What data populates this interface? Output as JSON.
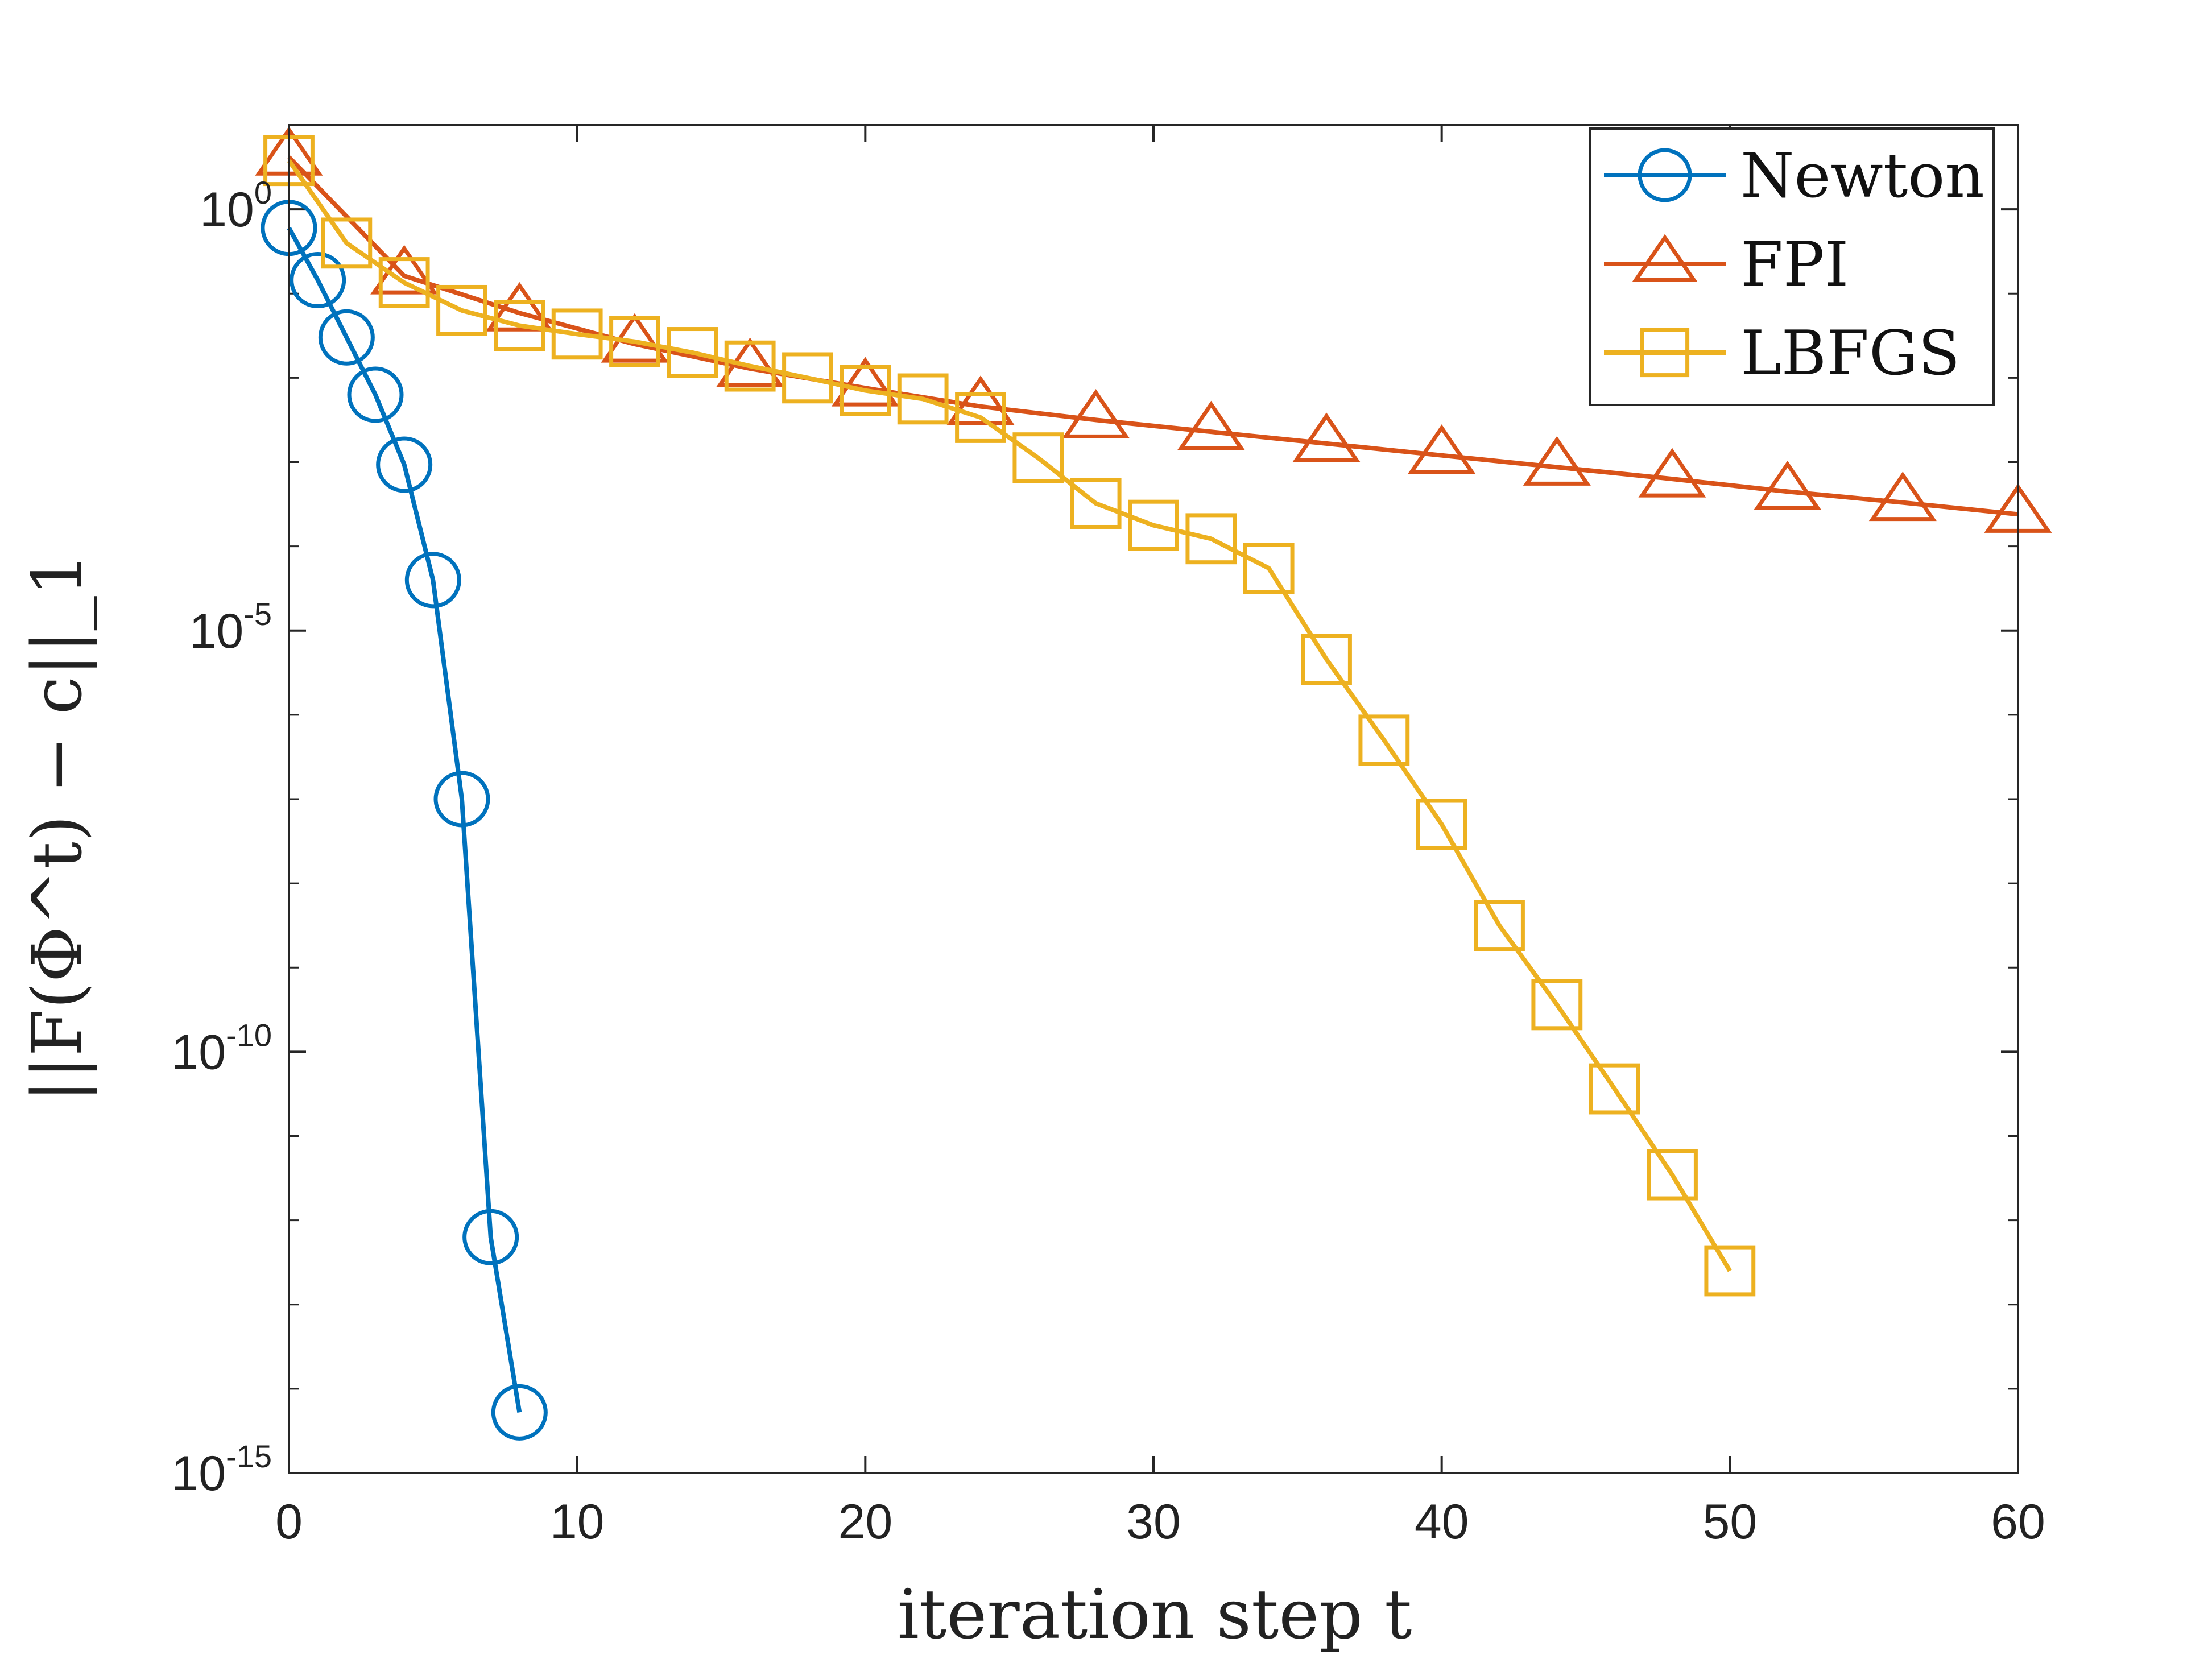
{
  "chart_data": {
    "type": "line",
    "title": "",
    "xlabel": "iteration step t",
    "ylabel": "||F(Φ^t) − c||_1",
    "xlim": [
      0,
      60
    ],
    "ylim_log10": [
      -15,
      1
    ],
    "yscale": "log",
    "x_ticks": [
      "0",
      "10",
      "20",
      "30",
      "40",
      "50",
      "60"
    ],
    "y_ticks": [
      {
        "base": "10",
        "exp": "0"
      },
      {
        "base": "10",
        "exp": "-5"
      },
      {
        "base": "10",
        "exp": "-10"
      },
      {
        "base": "10",
        "exp": "-15"
      }
    ],
    "legend_position": "top-right",
    "series": [
      {
        "name": "Newton",
        "color": "#0072BD",
        "marker": "circle",
        "x": [
          0,
          1,
          2,
          3,
          4,
          5,
          6,
          7,
          8
        ],
        "log10_y": [
          -0.22,
          -0.84,
          -1.52,
          -2.2,
          -3.03,
          -4.4,
          -7.0,
          -12.2,
          -14.28
        ]
      },
      {
        "name": "FPI",
        "color": "#D95319",
        "marker": "triangle",
        "x": [
          0,
          4,
          8,
          12,
          16,
          20,
          24,
          28,
          32,
          36,
          40,
          44,
          48,
          52,
          56,
          60
        ],
        "log10_y": [
          0.62,
          -0.79,
          -1.23,
          -1.6,
          -1.89,
          -2.12,
          -2.34,
          -2.5,
          -2.64,
          -2.78,
          -2.92,
          -3.06,
          -3.2,
          -3.35,
          -3.48,
          -3.62
        ]
      },
      {
        "name": "LBFGS",
        "color": "#EDB120",
        "marker": "square",
        "x": [
          0,
          2,
          4,
          6,
          8,
          10,
          12,
          14,
          16,
          18,
          20,
          22,
          24,
          26,
          28,
          30,
          32,
          34,
          36,
          38,
          40,
          42,
          44,
          46,
          48,
          50
        ],
        "log10_y": [
          0.58,
          -0.4,
          -0.87,
          -1.2,
          -1.38,
          -1.48,
          -1.57,
          -1.7,
          -1.86,
          -2.0,
          -2.15,
          -2.25,
          -2.47,
          -2.95,
          -3.49,
          -3.75,
          -3.91,
          -4.26,
          -5.34,
          -6.3,
          -7.3,
          -8.5,
          -9.44,
          -10.44,
          -11.46,
          -12.6
        ]
      }
    ]
  }
}
